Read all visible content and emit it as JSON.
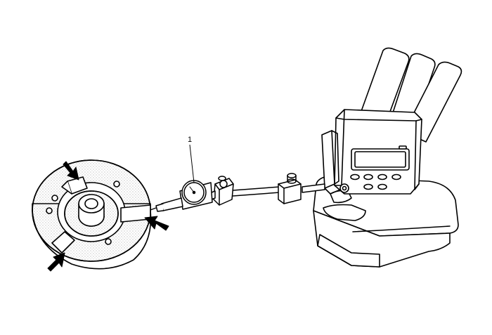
{
  "callouts": [
    {
      "id": "dial-indicator",
      "label": "1"
    }
  ],
  "colors": {
    "line": "#000000",
    "background": "#ffffff",
    "stipple": "#9a9a9a"
  },
  "icons": {
    "arrow": "pointer-arrow-icon"
  }
}
